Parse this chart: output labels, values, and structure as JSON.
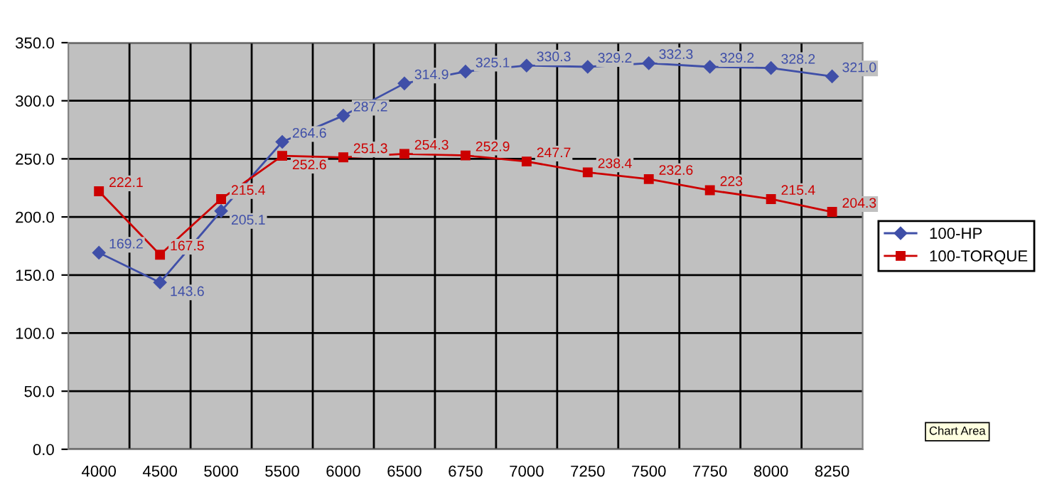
{
  "chart_data": {
    "type": "line",
    "categories": [
      "4000",
      "4500",
      "5000",
      "5500",
      "6000",
      "6500",
      "6750",
      "7000",
      "7250",
      "7500",
      "7750",
      "8000",
      "8250"
    ],
    "series": [
      {
        "name": "100-HP",
        "color": "#3f4fa8",
        "values": [
          169.2,
          143.6,
          205.1,
          264.6,
          287.2,
          314.9,
          325.1,
          330.3,
          329.2,
          332.3,
          329.2,
          328.2,
          321.0
        ],
        "value_labels": [
          "169.2",
          "143.6",
          "205.1",
          "264.6",
          "287.2",
          "314.9",
          "325.1",
          "330.3",
          "329.2",
          "332.3",
          "329.2",
          "328.2",
          "321.0"
        ],
        "marker": "diamond"
      },
      {
        "name": "100-TORQUE",
        "color": "#cc0000",
        "values": [
          222.1,
          167.5,
          215.4,
          252.6,
          251.3,
          254.3,
          252.9,
          247.7,
          238.4,
          232.6,
          223,
          215.4,
          204.3
        ],
        "value_labels": [
          "222.1",
          "167.5",
          "215.4",
          "252.6",
          "251.3",
          "254.3",
          "252.9",
          "247.7",
          "238.4",
          "232.6",
          "223",
          "215.4",
          "204.3"
        ],
        "marker": "square"
      }
    ],
    "ylim": [
      0,
      350
    ],
    "yticks": [
      {
        "value": 0,
        "label": "0.0"
      },
      {
        "value": 50,
        "label": "50.0"
      },
      {
        "value": 100,
        "label": "100.0"
      },
      {
        "value": 150,
        "label": "150.0"
      },
      {
        "value": 200,
        "label": "200.0"
      },
      {
        "value": 250,
        "label": "250.0"
      },
      {
        "value": 300,
        "label": "300.0"
      },
      {
        "value": 350,
        "label": "350.0"
      }
    ],
    "grid": true,
    "legend": "right",
    "line_style": "solid",
    "annotations": [
      "Chart Area"
    ]
  }
}
